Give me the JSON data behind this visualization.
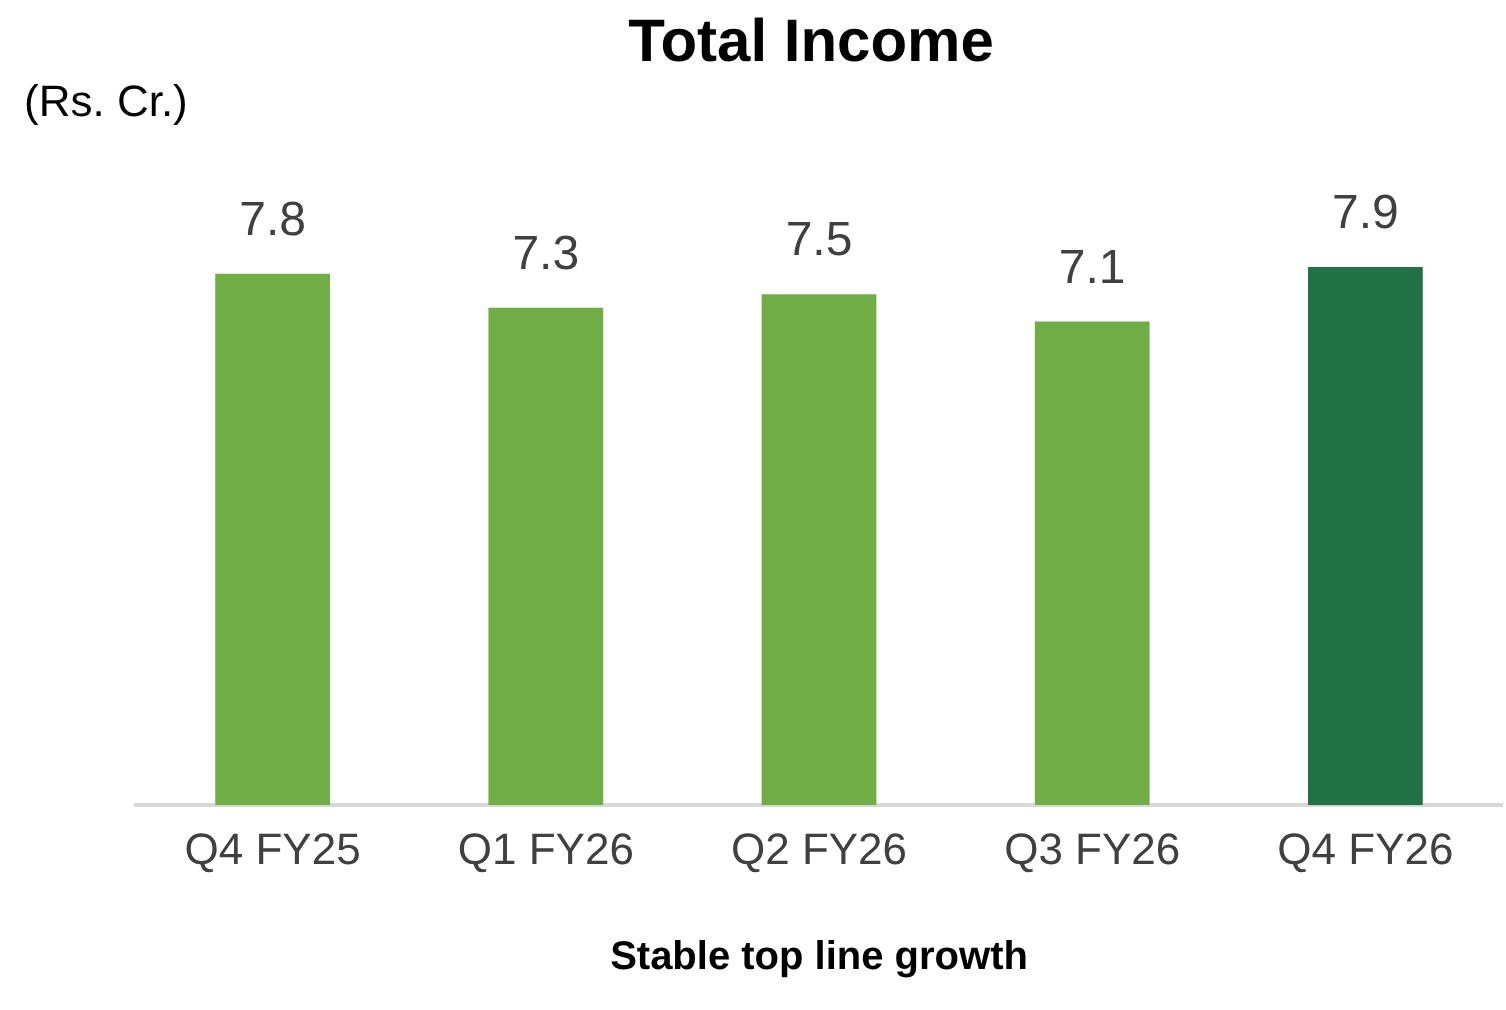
{
  "chart_data": {
    "type": "bar",
    "title": "Total Income",
    "ylabel": "(Rs. Cr.)",
    "xlabel": "Stable top line growth",
    "categories": [
      "Q4 FY25",
      "Q1 FY26",
      "Q2 FY26",
      "Q3 FY26",
      "Q4 FY26"
    ],
    "values": [
      7.8,
      7.3,
      7.5,
      7.1,
      7.9
    ],
    "colors": [
      "#70ad47",
      "#70ad47",
      "#70ad47",
      "#70ad47",
      "#217346"
    ],
    "data_labels": true,
    "tick_labels": "x",
    "grid": false,
    "legend": false
  }
}
